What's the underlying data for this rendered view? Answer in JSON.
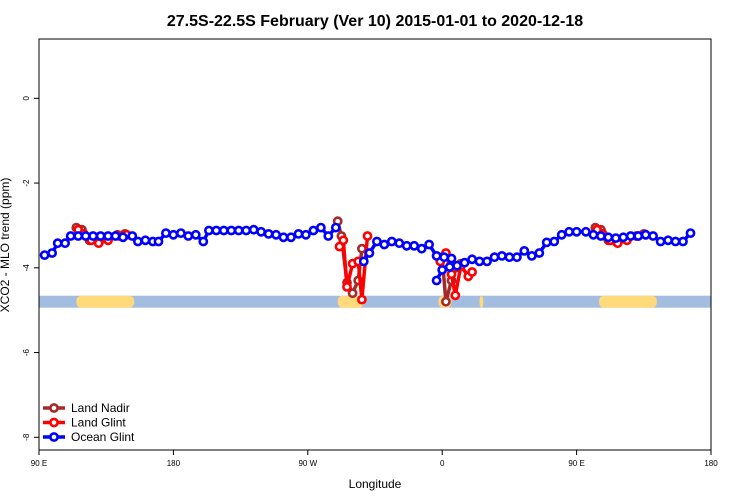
{
  "chart_data": {
    "type": "line",
    "title": "27.5S-22.5S February (Ver 10)   2015-01-01 to 2020-12-18",
    "xlabel": "Longitude",
    "ylabel": "XCO2 - MLO trend (ppm)",
    "xlim": [
      90,
      450
    ],
    "ylim": [
      -8.3,
      1.4
    ],
    "x_ticks": [
      90,
      162,
      234,
      306,
      378,
      450
    ],
    "x_tick_labels": [
      "90 E",
      "180",
      "90 W",
      "0",
      "90 E",
      "180"
    ],
    "y_ticks": [
      0,
      -2,
      -4,
      -6,
      -8
    ],
    "y_tick_labels": [
      "0",
      "-2",
      "-4",
      "-6",
      "-8"
    ],
    "grid": false,
    "legend_position": "bottom-left",
    "band": {
      "y": -4.8,
      "ocean_color": "#a3bde0",
      "land_color": "#ffd97a",
      "land_ranges": [
        [
          110,
          141
        ],
        [
          250,
          264
        ],
        [
          304,
          311
        ],
        [
          326,
          328
        ],
        [
          390,
          421
        ]
      ]
    },
    "series": [
      {
        "name": "Land Nadir",
        "color": "#a52a2a",
        "segments": [
          [
            [
              110,
              -3.05
            ],
            [
              113,
              -3.1
            ],
            [
              117,
              -3.35
            ],
            [
              121,
              -3.35
            ],
            [
              126,
              -3.3
            ],
            [
              132,
              -3.22
            ],
            [
              136,
              -3.2
            ]
          ],
          [
            [
              250,
              -2.9
            ],
            [
              252,
              -3.25
            ],
            [
              255,
              -4.35
            ],
            [
              258,
              -4.6
            ],
            [
              261,
              -4.3
            ],
            [
              263,
              -3.55
            ]
          ],
          [
            [
              306,
              -3.75
            ],
            [
              308,
              -4.8
            ],
            [
              311,
              -4.3
            ],
            [
              313,
              -4.0
            ],
            [
              316,
              -3.9
            ]
          ],
          [
            [
              388,
              -3.05
            ],
            [
              391,
              -3.1
            ],
            [
              395,
              -3.35
            ],
            [
              399,
              -3.38
            ],
            [
              404,
              -3.32
            ],
            [
              410,
              -3.25
            ],
            [
              414,
              -3.2
            ]
          ]
        ]
      },
      {
        "name": "Land Glint",
        "color": "#ff0000",
        "segments": [
          [
            [
              111,
              -3.1
            ],
            [
              114,
              -3.2
            ],
            [
              118,
              -3.35
            ],
            [
              122,
              -3.42
            ],
            [
              127,
              -3.35
            ],
            [
              133,
              -3.25
            ],
            [
              137,
              -3.22
            ]
          ],
          [
            [
              251,
              -3.5
            ],
            [
              253,
              -3.35
            ],
            [
              255,
              -4.45
            ],
            [
              258,
              -3.9
            ],
            [
              261,
              -3.85
            ],
            [
              263,
              -4.75
            ],
            [
              266,
              -3.25
            ]
          ],
          [
            [
              305,
              -3.85
            ],
            [
              308,
              -3.65
            ],
            [
              311,
              -4.15
            ],
            [
              313,
              -4.65
            ],
            [
              316,
              -3.95
            ],
            [
              320,
              -4.2
            ],
            [
              322,
              -4.1
            ]
          ],
          [
            [
              389,
              -3.1
            ],
            [
              392,
              -3.2
            ],
            [
              396,
              -3.35
            ],
            [
              400,
              -3.42
            ],
            [
              405,
              -3.35
            ],
            [
              411,
              -3.25
            ],
            [
              415,
              -3.22
            ]
          ]
        ]
      },
      {
        "name": "Ocean Glint",
        "color": "#0000ff",
        "segments": [
          [
            [
              93,
              -3.7
            ],
            [
              97,
              -3.65
            ],
            [
              100,
              -3.42
            ],
            [
              104,
              -3.42
            ],
            [
              107,
              -3.25
            ],
            [
              111,
              -3.25
            ],
            [
              115,
              -3.25
            ],
            [
              119,
              -3.25
            ],
            [
              123,
              -3.25
            ],
            [
              127,
              -3.25
            ],
            [
              131,
              -3.25
            ],
            [
              135,
              -3.28
            ],
            [
              140,
              -3.25
            ],
            [
              143,
              -3.38
            ],
            [
              147,
              -3.35
            ],
            [
              151,
              -3.38
            ],
            [
              154,
              -3.38
            ],
            [
              158,
              -3.18
            ],
            [
              162,
              -3.22
            ],
            [
              166,
              -3.18
            ],
            [
              170,
              -3.25
            ],
            [
              174,
              -3.22
            ],
            [
              178,
              -3.38
            ],
            [
              181,
              -3.12
            ],
            [
              185,
              -3.12
            ],
            [
              189,
              -3.12
            ],
            [
              193,
              -3.12
            ],
            [
              197,
              -3.12
            ],
            [
              201,
              -3.12
            ],
            [
              205,
              -3.1
            ],
            [
              209,
              -3.15
            ],
            [
              213,
              -3.2
            ],
            [
              217,
              -3.22
            ],
            [
              221,
              -3.28
            ],
            [
              225,
              -3.28
            ],
            [
              229,
              -3.2
            ],
            [
              233,
              -3.22
            ],
            [
              237,
              -3.12
            ],
            [
              241,
              -3.05
            ],
            [
              245,
              -3.25
            ],
            [
              249,
              -3.05
            ]
          ],
          [
            [
              264,
              -3.85
            ],
            [
              267,
              -3.65
            ],
            [
              271,
              -3.38
            ],
            [
              275,
              -3.45
            ],
            [
              279,
              -3.38
            ],
            [
              283,
              -3.42
            ],
            [
              287,
              -3.48
            ],
            [
              291,
              -3.48
            ],
            [
              295,
              -3.55
            ],
            [
              299,
              -3.45
            ],
            [
              303,
              -3.72
            ],
            [
              307,
              -3.75
            ],
            [
              311,
              -3.78
            ]
          ],
          [
            [
              303,
              -4.3
            ],
            [
              306,
              -4.05
            ],
            [
              310,
              -3.98
            ],
            [
              314,
              -3.95
            ],
            [
              318,
              -3.88
            ],
            [
              322,
              -3.8
            ],
            [
              326,
              -3.85
            ],
            [
              330,
              -3.85
            ],
            [
              334,
              -3.75
            ],
            [
              338,
              -3.72
            ],
            [
              342,
              -3.75
            ],
            [
              346,
              -3.75
            ],
            [
              350,
              -3.6
            ],
            [
              354,
              -3.72
            ],
            [
              358,
              -3.65
            ],
            [
              362,
              -3.4
            ],
            [
              366,
              -3.38
            ],
            [
              370,
              -3.22
            ],
            [
              374,
              -3.15
            ],
            [
              378,
              -3.15
            ],
            [
              383,
              -3.15
            ],
            [
              387,
              -3.22
            ],
            [
              391,
              -3.25
            ],
            [
              395,
              -3.28
            ],
            [
              399,
              -3.3
            ],
            [
              403,
              -3.28
            ],
            [
              407,
              -3.25
            ],
            [
              411,
              -3.25
            ],
            [
              415,
              -3.22
            ],
            [
              419,
              -3.25
            ],
            [
              423,
              -3.38
            ],
            [
              427,
              -3.35
            ],
            [
              431,
              -3.38
            ],
            [
              435,
              -3.38
            ],
            [
              439,
              -3.18
            ]
          ]
        ]
      }
    ]
  }
}
